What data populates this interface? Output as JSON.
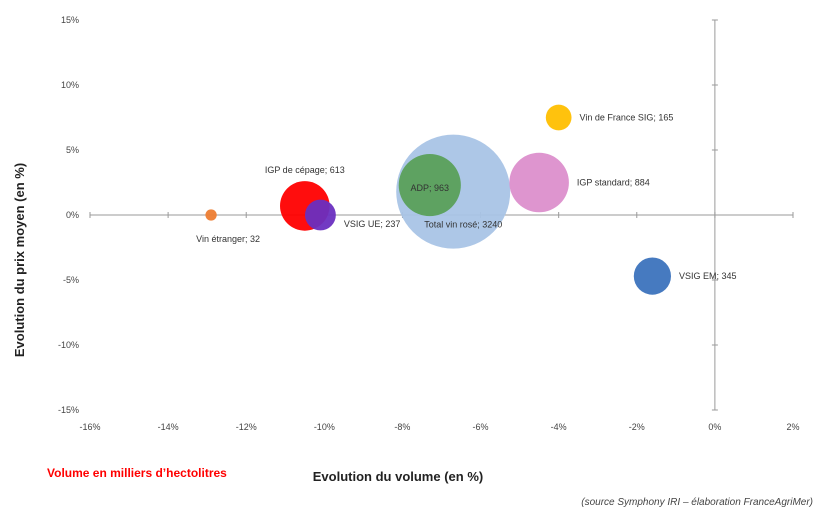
{
  "chart_data": {
    "type": "bubble",
    "xlabel": "Evolution du volume (en %)",
    "ylabel": "Evolution du prix moyen (en %)",
    "xlim": [
      -16,
      2
    ],
    "ylim": [
      -15,
      15
    ],
    "x_ticks": [
      "-16%",
      "-14%",
      "-12%",
      "-10%",
      "-8%",
      "-6%",
      "-4%",
      "-2%",
      "0%",
      "2%"
    ],
    "y_ticks": [
      "15%",
      "10%",
      "5%",
      "0%",
      "-5%",
      "-10%",
      "-15%"
    ],
    "x_tick_values": [
      -16,
      -14,
      -12,
      -10,
      -8,
      -6,
      -4,
      -2,
      0,
      2
    ],
    "y_tick_values": [
      15,
      10,
      5,
      0,
      -5,
      -10,
      -15
    ],
    "grid": false,
    "series": [
      {
        "name": "Total vin rosé",
        "x": -6.7,
        "y": 1.8,
        "size": 3240,
        "color": "#a9c4e6",
        "label": "Total vin rosé; 3240"
      },
      {
        "name": "IGP standard",
        "x": -4.5,
        "y": 2.5,
        "size": 884,
        "color": "#dc8fcc",
        "label": "IGP standard; 884"
      },
      {
        "name": "ADP",
        "x": -7.3,
        "y": 2.3,
        "size": 963,
        "color": "#5aa05a",
        "label": "ADP; 963"
      },
      {
        "name": "IGP de cépage",
        "x": -10.5,
        "y": 0.7,
        "size": 613,
        "color": "#ff0000",
        "label": "IGP de cépage; 613"
      },
      {
        "name": "VSIG UE",
        "x": -10.1,
        "y": 0.0,
        "size": 237,
        "color": "#6a2fc0",
        "label": "VSIG UE; 237"
      },
      {
        "name": "VSIG EM",
        "x": -1.6,
        "y": -4.7,
        "size": 345,
        "color": "#3c73bd",
        "label": "VSIG EM; 345"
      },
      {
        "name": "Vin de France SIG",
        "x": -4.0,
        "y": 7.5,
        "size": 165,
        "color": "#ffbf00",
        "label": "Vin de France SIG; 165"
      },
      {
        "name": "Vin étranger",
        "x": -12.9,
        "y": 0.0,
        "size": 32,
        "color": "#ed7d31",
        "label": "Vin étranger; 32"
      }
    ]
  },
  "note": "Volume en milliers d’hectolitres",
  "source": "(source Symphony IRI – élaboration FranceAgriMer)"
}
